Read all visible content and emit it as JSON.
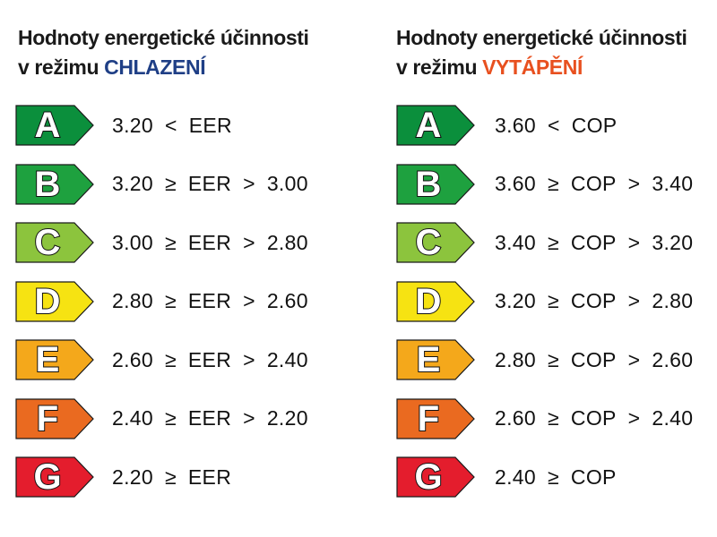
{
  "cooling": {
    "heading_line1": "Hodnoty energetické účinnosti",
    "heading_line2_prefix": "v režimu ",
    "heading_line2_accent": "CHLAZENÍ",
    "rows": [
      {
        "class": "A",
        "parts": [
          "3.20",
          "<",
          "EER"
        ]
      },
      {
        "class": "B",
        "parts": [
          "3.20",
          "≥",
          "EER",
          ">",
          "3.00"
        ]
      },
      {
        "class": "C",
        "parts": [
          "3.00",
          "≥",
          "EER",
          ">",
          "2.80"
        ]
      },
      {
        "class": "D",
        "parts": [
          "2.80",
          "≥",
          "EER",
          ">",
          "2.60"
        ]
      },
      {
        "class": "E",
        "parts": [
          "2.60",
          "≥",
          "EER",
          ">",
          "2.40"
        ]
      },
      {
        "class": "F",
        "parts": [
          "2.40",
          "≥",
          "EER",
          ">",
          "2.20"
        ]
      },
      {
        "class": "G",
        "parts": [
          "2.20",
          "≥",
          "EER"
        ]
      }
    ]
  },
  "heating": {
    "heading_line1": "Hodnoty energetické účinnosti",
    "heading_line2_prefix": "v režimu ",
    "heading_line2_accent": "VYTÁPĚNÍ",
    "rows": [
      {
        "class": "A",
        "parts": [
          "3.60",
          "<",
          "COP"
        ]
      },
      {
        "class": "B",
        "parts": [
          "3.60",
          "≥",
          "COP",
          ">",
          "3.40"
        ]
      },
      {
        "class": "C",
        "parts": [
          "3.40",
          "≥",
          "COP",
          ">",
          "3.20"
        ]
      },
      {
        "class": "D",
        "parts": [
          "3.20",
          "≥",
          "COP",
          ">",
          "2.80"
        ]
      },
      {
        "class": "E",
        "parts": [
          "2.80",
          "≥",
          "COP",
          ">",
          "2.60"
        ]
      },
      {
        "class": "F",
        "parts": [
          "2.60",
          "≥",
          "COP",
          ">",
          "2.40"
        ]
      },
      {
        "class": "G",
        "parts": [
          "2.40",
          "≥",
          "COP"
        ]
      }
    ]
  },
  "class_colors": {
    "A": "#0b8f3c",
    "B": "#1ea13f",
    "C": "#8cc43d",
    "D": "#f6e312",
    "E": "#f4a81b",
    "F": "#ea6a20",
    "G": "#e41d2d"
  }
}
